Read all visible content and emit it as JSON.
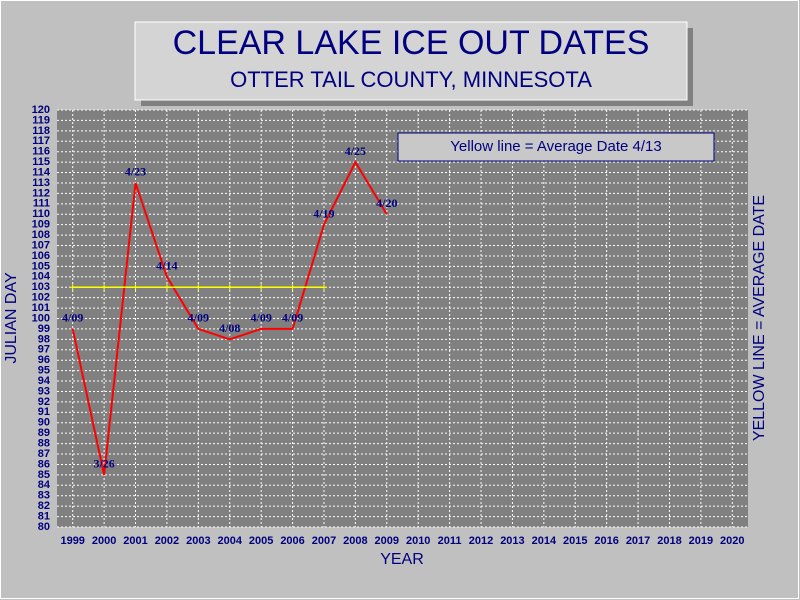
{
  "chart_data": {
    "type": "line",
    "title": "CLEAR LAKE ICE OUT DATES",
    "subtitle": "OTTER TAIL COUNTY, MINNESOTA",
    "annotation": "Yellow line = Average Date 4/13",
    "x_label": "YEAR",
    "y_label": "JULIAN DAY",
    "y2_label": "YELLOW LINE = AVERAGE DATE",
    "categories": [
      "1999",
      "2000",
      "2001",
      "2002",
      "2003",
      "2004",
      "2005",
      "2006",
      "2007",
      "2008",
      "2009",
      "2010",
      "2011",
      "2012",
      "2013",
      "2014",
      "2015",
      "2016",
      "2017",
      "2018",
      "2019",
      "2020"
    ],
    "series": [
      {
        "color": "#ff0000",
        "values": [
          99,
          85,
          113,
          104,
          99,
          98,
          99,
          99,
          109,
          115,
          110,
          null,
          null,
          null,
          null,
          null,
          null,
          null,
          null,
          null,
          null,
          null
        ],
        "value_labels": [
          "4/09",
          "3/26",
          "4/23",
          "4/14",
          "4/09",
          "4/08",
          "4/09",
          "4/09",
          "4/19",
          "4/25",
          "4/20",
          null,
          null,
          null,
          null,
          null,
          null,
          null,
          null,
          null,
          null,
          null
        ]
      },
      {
        "color": "#ffff00",
        "values": [
          103,
          103,
          103,
          103,
          103,
          103,
          103,
          103,
          103,
          null,
          null,
          null,
          null,
          null,
          null,
          null,
          null,
          null,
          null,
          null,
          null,
          null
        ]
      }
    ],
    "ylim": [
      80,
      120
    ],
    "yticks": [
      80,
      81,
      82,
      83,
      84,
      85,
      86,
      87,
      88,
      89,
      90,
      91,
      92,
      93,
      94,
      95,
      96,
      97,
      98,
      99,
      100,
      101,
      102,
      103,
      104,
      105,
      106,
      107,
      108,
      109,
      110,
      111,
      112,
      113,
      114,
      115,
      116,
      117,
      118,
      119,
      120
    ],
    "grid": true
  }
}
